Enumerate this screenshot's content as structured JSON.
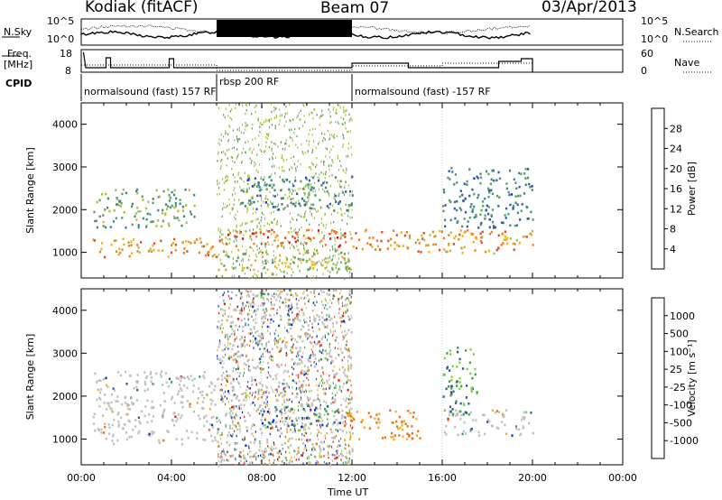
{
  "header": {
    "station": "Kodiak (fitACF)",
    "beam": "Beam 07",
    "date": "03/Apr/2013"
  },
  "left_labels": {
    "nsky": "N.Sky",
    "freq_top": "Freq.",
    "freq_unit": "[MHz]",
    "cpid": "CPID"
  },
  "right_labels": {
    "nsearch": "N.Search",
    "nave": "Nave"
  },
  "noise_axis": {
    "left_top": "10^5",
    "left_bottom": "10^0",
    "right_top": "10^5",
    "right_bottom": "10^0"
  },
  "freq_axis": {
    "left_top": "18",
    "left_bottom": "8",
    "right_top": "60",
    "right_bottom": "0"
  },
  "cpid_segments": [
    {
      "label": "normalsound (fast) 157 RF",
      "start": "00:00",
      "end": "06:00"
    },
    {
      "label": "rbsp 200 RF",
      "start": "06:00",
      "end": "12:00"
    },
    {
      "label": "normalsound (fast) -157 RF",
      "start": "12:00",
      "end": "20:00"
    }
  ],
  "x_axis": {
    "label": "Time UT",
    "ticks": [
      "00:00",
      "04:00",
      "08:00",
      "12:00",
      "16:00",
      "20:00",
      "00:00"
    ]
  },
  "power_colorbar": {
    "label": "Power [dB]",
    "ticks": [
      "4",
      "8",
      "12",
      "16",
      "20",
      "24",
      "28"
    ],
    "colors": [
      "#1030d0",
      "#2a5ea8",
      "#3d8a80",
      "#58a060",
      "#a8c040",
      "#f0b020",
      "#f08020",
      "#e84818",
      "#e01010"
    ]
  },
  "velocity_colorbar": {
    "label": "Velocity [m s⁻¹]",
    "ticks": [
      "1000",
      "500",
      "100",
      "25",
      "-25",
      "-100",
      "-500",
      "-1000"
    ],
    "colors": [
      "#1028c8",
      "#2a6090",
      "#3aa050",
      "#80d040",
      "#c0c0c0",
      "#f0b020",
      "#f07010",
      "#e02010"
    ]
  },
  "chart_data": [
    {
      "type": "heatmap",
      "title": "Power",
      "xlabel": "Time UT",
      "ylabel": "Slant Range [km]",
      "xlim": [
        "00:00",
        "24:00"
      ],
      "ylim": [
        400,
        4500
      ],
      "y_ticks": [
        1000,
        2000,
        3000,
        4000
      ],
      "colorbar": "Power [dB]",
      "bands": [
        {
          "start_hour": 0.5,
          "end_hour": 6.0,
          "range_low": 900,
          "range_high": 1350,
          "power_db": 20
        },
        {
          "start_hour": 6.0,
          "end_hour": 12.0,
          "range_low": 1150,
          "range_high": 1550,
          "power_db": 24
        },
        {
          "start_hour": 12.0,
          "end_hour": 20.0,
          "range_low": 1000,
          "range_high": 1550,
          "power_db": 20
        },
        {
          "start_hour": 0.5,
          "end_hour": 5.0,
          "range_low": 1600,
          "range_high": 2500,
          "power_db": 12
        },
        {
          "start_hour": 6.0,
          "end_hour": 12.0,
          "range_low": 600,
          "range_high": 1100,
          "power_db": 14
        },
        {
          "start_hour": 7.0,
          "end_hour": 12.0,
          "range_low": 2000,
          "range_high": 2800,
          "power_db": 8
        },
        {
          "start_hour": 16.0,
          "end_hour": 20.0,
          "range_low": 1600,
          "range_high": 3000,
          "power_db": 8
        }
      ]
    },
    {
      "type": "heatmap",
      "title": "Velocity",
      "xlabel": "Time UT",
      "ylabel": "Slant Range [km]",
      "xlim": [
        "00:00",
        "24:00"
      ],
      "ylim": [
        400,
        4500
      ],
      "y_ticks": [
        1000,
        2000,
        3000,
        4000
      ],
      "colorbar": "Velocity [m s⁻¹]",
      "bands": [
        {
          "start_hour": 0.5,
          "end_hour": 6.0,
          "range_low": 900,
          "range_high": 2600,
          "velocity": 0
        },
        {
          "start_hour": 6.0,
          "end_hour": 12.0,
          "range_low": 400,
          "range_high": 4500,
          "velocity": 0
        },
        {
          "start_hour": 8.0,
          "end_hour": 11.5,
          "range_low": 1300,
          "range_high": 1800,
          "velocity": 500
        },
        {
          "start_hour": 11.5,
          "end_hour": 15.0,
          "range_low": 1000,
          "range_high": 1700,
          "velocity": -300
        },
        {
          "start_hour": 16.0,
          "end_hour": 20.0,
          "range_low": 1100,
          "range_high": 1700,
          "velocity": 0
        },
        {
          "start_hour": 16.0,
          "end_hour": 17.5,
          "range_low": 1600,
          "range_high": 3200,
          "velocity": 100
        }
      ]
    }
  ]
}
